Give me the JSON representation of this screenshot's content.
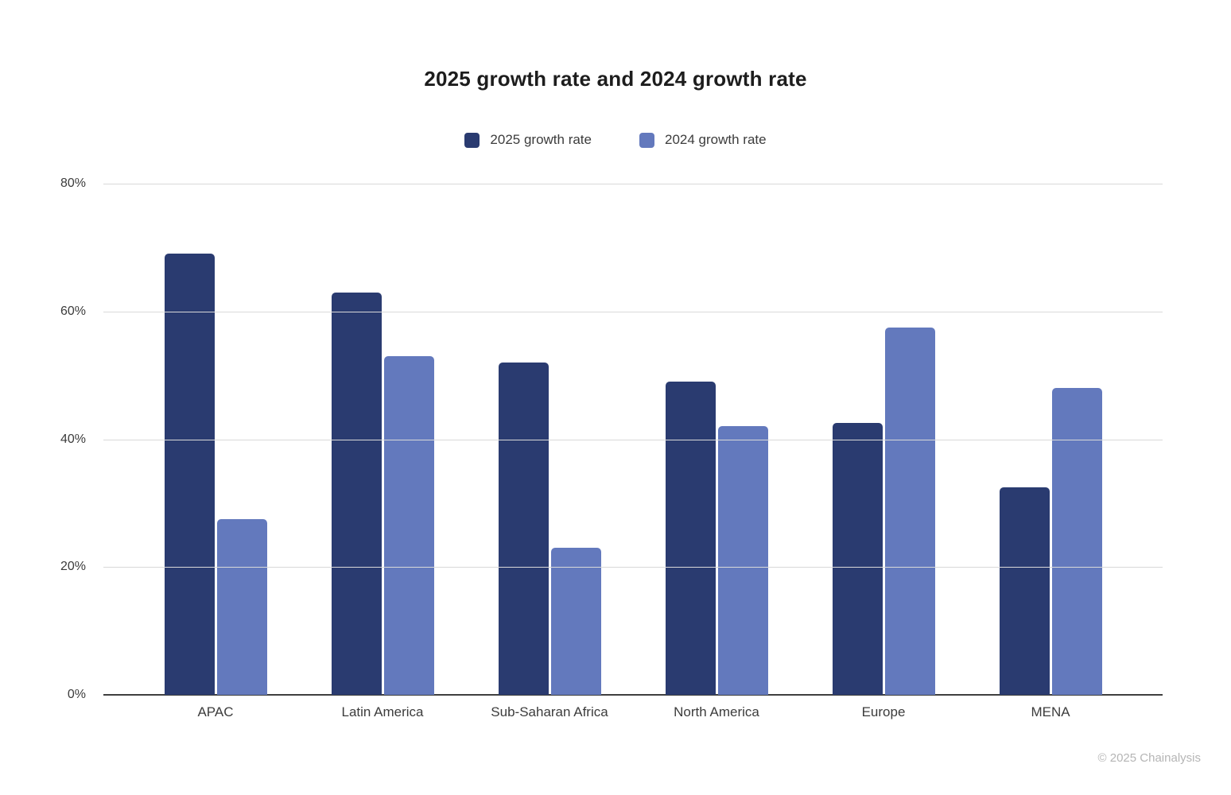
{
  "title": "2025 growth rate and 2024 growth rate",
  "chart_data": {
    "type": "bar",
    "title": "2025 growth rate and 2024 growth rate",
    "categories": [
      "APAC",
      "Latin America",
      "Sub-Saharan Africa",
      "North America",
      "Europe",
      "MENA"
    ],
    "series": [
      {
        "name": "2025 growth rate",
        "color": "#2a3b70",
        "values": [
          69,
          63,
          52,
          49,
          42.5,
          32.5
        ]
      },
      {
        "name": "2024 growth rate",
        "color": "#6379bd",
        "values": [
          27.5,
          53,
          23,
          42,
          57.5,
          48
        ]
      }
    ],
    "xlabel": "",
    "ylabel": "",
    "ylim": [
      0,
      80
    ],
    "yticks": [
      {
        "value": 0,
        "label": "0%"
      },
      {
        "value": 20,
        "label": "20%"
      },
      {
        "value": 40,
        "label": "40%"
      },
      {
        "value": 60,
        "label": "60%"
      },
      {
        "value": 80,
        "label": "80%"
      }
    ],
    "grid": true,
    "legend_position": "top-center"
  },
  "footer": {
    "copyright": "© 2025 Chainalysis"
  },
  "colors": {
    "series_2025": "#2a3b70",
    "series_2024": "#6379bd",
    "gridline": "#d9d9d9",
    "axis": "#3f3f3f",
    "title_text": "#1d1d1d",
    "label_text": "#3c3c3c",
    "copyright_text": "#b5b5b5"
  }
}
